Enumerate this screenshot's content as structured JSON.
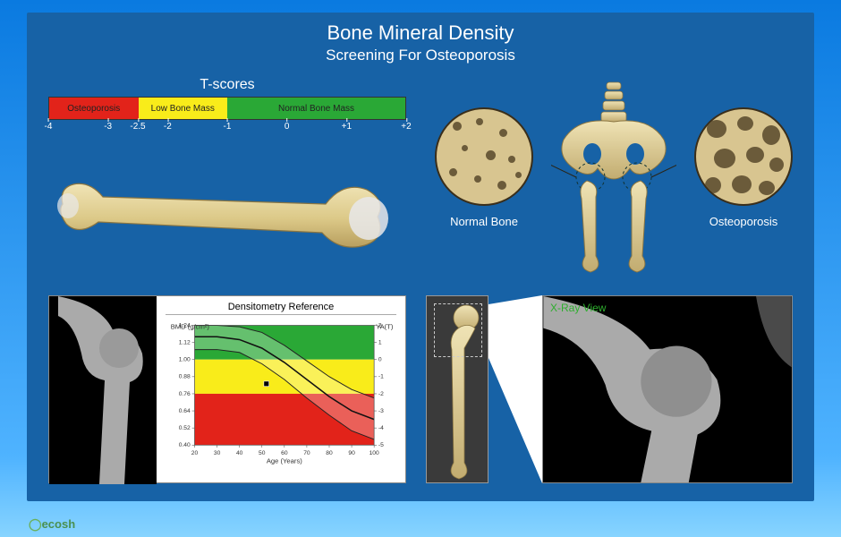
{
  "title": "Bone Mineral Density",
  "subtitle": "Screening For Osteoporosis",
  "watermark": "ecosh",
  "tscore": {
    "title": "T-scores",
    "min": -4,
    "max": 2,
    "ticks": [
      -4,
      -3,
      -2.5,
      -2,
      -1,
      0,
      1,
      2
    ],
    "tick_labels": [
      "-4",
      "-3",
      "-2.5",
      "-2",
      "-1",
      "0",
      "+1",
      "+2"
    ],
    "segments": [
      {
        "label": "Osteoporosis",
        "from": -4,
        "to": -2.5,
        "color": "#e2231a"
      },
      {
        "label": "Low Bone Mass",
        "from": -2.5,
        "to": -1,
        "color": "#f9ec1a"
      },
      {
        "label": "Normal Bone Mass",
        "from": -1,
        "to": 2,
        "color": "#2aa836"
      }
    ]
  },
  "compare": {
    "left_label": "Normal Bone",
    "right_label": "Osteoporosis"
  },
  "densitometry": {
    "title": "Densitometry Reference",
    "x_label": "Age (Years)",
    "y_left_label": "BMD (g/cm²)",
    "y_right_label": "YA(T)",
    "x_ticks": [
      20,
      30,
      40,
      50,
      60,
      70,
      80,
      90,
      100
    ],
    "y_left_ticks": [
      0.4,
      0.52,
      0.64,
      0.76,
      0.88,
      1.0,
      1.12,
      1.24
    ],
    "y_right_ticks": [
      -5,
      -4,
      -3,
      -2,
      -1,
      0,
      1,
      2
    ],
    "zones": [
      {
        "name": "green",
        "color": "#2aa836",
        "lo": 1.0,
        "hi": 1.24
      },
      {
        "name": "yellow",
        "color": "#f9ec1a",
        "lo": 0.76,
        "hi": 1.0
      },
      {
        "name": "red",
        "color": "#e2231a",
        "lo": 0.4,
        "hi": 0.76
      }
    ],
    "mean_line": [
      [
        20,
        1.16
      ],
      [
        30,
        1.16
      ],
      [
        40,
        1.14
      ],
      [
        50,
        1.08
      ],
      [
        60,
        0.98
      ],
      [
        70,
        0.86
      ],
      [
        80,
        0.74
      ],
      [
        90,
        0.64
      ],
      [
        100,
        0.58
      ]
    ],
    "upper_line": [
      [
        20,
        1.24
      ],
      [
        30,
        1.24
      ],
      [
        40,
        1.23
      ],
      [
        50,
        1.19
      ],
      [
        60,
        1.1
      ],
      [
        70,
        0.99
      ],
      [
        80,
        0.88
      ],
      [
        90,
        0.79
      ],
      [
        100,
        0.73
      ]
    ],
    "lower_line": [
      [
        20,
        1.07
      ],
      [
        30,
        1.07
      ],
      [
        40,
        1.05
      ],
      [
        50,
        0.97
      ],
      [
        60,
        0.86
      ],
      [
        70,
        0.73
      ],
      [
        80,
        0.61
      ],
      [
        90,
        0.5
      ],
      [
        100,
        0.44
      ]
    ],
    "patient_point": {
      "age": 52,
      "bmd": 0.83
    }
  },
  "xray": {
    "label": "X-Ray View"
  },
  "colors": {
    "panel_bg": "#1762a6",
    "bone_light": "#e8d9a8",
    "bone_shade": "#c9b878",
    "bone_dark": "#a8945a"
  }
}
